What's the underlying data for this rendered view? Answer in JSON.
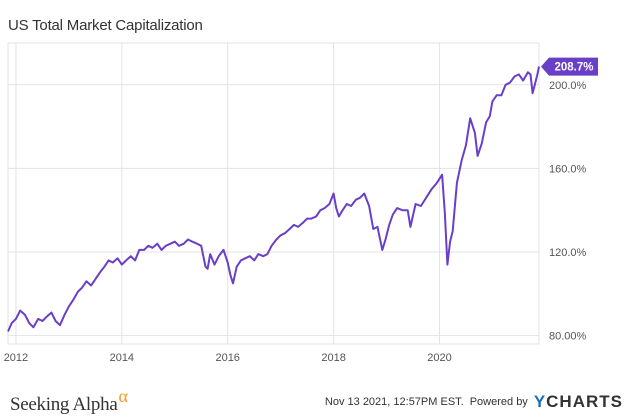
{
  "chart_data": {
    "type": "line",
    "title": "US Total Market Capitalization",
    "xlabel": "",
    "ylabel": "",
    "x_tick_labels": [
      "2012",
      "2014",
      "2016",
      "2018",
      "2020"
    ],
    "x_tick_values": [
      2012,
      2014,
      2016,
      2018,
      2020
    ],
    "y_tick_labels": [
      "80.00%",
      "120.0%",
      "160.0%",
      "200.0%"
    ],
    "y_tick_values": [
      80,
      120,
      160,
      200
    ],
    "xlim": [
      2011.85,
      2021.88
    ],
    "ylim": [
      76,
      220
    ],
    "grid": true,
    "series": [
      {
        "color": "#6a3fc7",
        "last_value_label": "208.7%",
        "x": [
          2011.85,
          2011.92,
          2012.0,
          2012.08,
          2012.17,
          2012.25,
          2012.33,
          2012.42,
          2012.5,
          2012.58,
          2012.67,
          2012.75,
          2012.83,
          2012.92,
          2013.0,
          2013.08,
          2013.17,
          2013.25,
          2013.33,
          2013.42,
          2013.5,
          2013.58,
          2013.67,
          2013.75,
          2013.83,
          2013.92,
          2014.0,
          2014.08,
          2014.17,
          2014.25,
          2014.33,
          2014.42,
          2014.5,
          2014.58,
          2014.67,
          2014.75,
          2014.83,
          2014.92,
          2015.0,
          2015.08,
          2015.17,
          2015.25,
          2015.33,
          2015.42,
          2015.5,
          2015.58,
          2015.62,
          2015.67,
          2015.75,
          2015.83,
          2015.92,
          2016.0,
          2016.05,
          2016.1,
          2016.17,
          2016.25,
          2016.33,
          2016.42,
          2016.5,
          2016.58,
          2016.67,
          2016.75,
          2016.83,
          2016.92,
          2017.0,
          2017.08,
          2017.17,
          2017.25,
          2017.33,
          2017.42,
          2017.5,
          2017.58,
          2017.67,
          2017.75,
          2017.83,
          2017.92,
          2018.0,
          2018.05,
          2018.1,
          2018.17,
          2018.25,
          2018.33,
          2018.42,
          2018.5,
          2018.58,
          2018.67,
          2018.75,
          2018.83,
          2018.92,
          2018.98,
          2019.05,
          2019.12,
          2019.2,
          2019.3,
          2019.4,
          2019.45,
          2019.55,
          2019.65,
          2019.75,
          2019.85,
          2019.95,
          2020.05,
          2020.1,
          2020.15,
          2020.2,
          2020.25,
          2020.33,
          2020.42,
          2020.5,
          2020.58,
          2020.67,
          2020.72,
          2020.8,
          2020.88,
          2020.95,
          2021.0,
          2021.08,
          2021.17,
          2021.25,
          2021.33,
          2021.42,
          2021.5,
          2021.58,
          2021.67,
          2021.72,
          2021.76,
          2021.8,
          2021.85,
          2021.88
        ],
        "y": [
          82,
          86,
          88,
          92,
          90,
          86,
          84,
          88,
          87,
          89,
          91,
          87,
          85,
          90,
          94,
          97,
          101,
          103,
          106,
          104,
          107,
          110,
          113,
          116,
          115,
          117,
          114,
          116,
          118,
          116,
          121,
          121,
          123,
          122,
          124,
          121,
          123,
          124,
          125,
          123,
          124,
          126,
          125,
          124,
          123,
          113,
          112,
          119,
          114,
          118,
          121,
          115,
          109,
          105,
          113,
          116,
          117,
          118,
          116,
          119,
          118,
          119,
          123,
          126,
          128,
          129,
          131,
          133,
          132,
          134,
          136,
          136,
          137,
          140,
          141,
          143,
          148,
          141,
          137,
          140,
          143,
          142,
          145,
          146,
          148,
          142,
          131,
          132,
          121,
          126,
          133,
          138,
          141,
          140,
          140,
          132,
          143,
          142,
          146,
          150,
          153,
          157,
          139,
          114,
          125,
          130,
          153,
          164,
          171,
          184,
          177,
          166,
          172,
          182,
          185,
          192,
          195,
          195,
          200,
          201,
          204,
          205,
          202,
          206,
          205,
          196,
          200,
          205,
          208.7
        ]
      }
    ]
  },
  "footer": {
    "brand_name": "Seeking Alpha",
    "brand_symbol": "α",
    "timestamp": "Nov 13 2021, 12:57PM EST.",
    "powered_by": "Powered by",
    "logo_y": "Y",
    "logo_rest": "CHARTS"
  },
  "colors": {
    "line": "#6a3fc7",
    "grid": "#e3e3e3",
    "axis_text": "#555555",
    "brand_alpha": "#f59a23",
    "ycharts_y": "#1f6fb5"
  }
}
